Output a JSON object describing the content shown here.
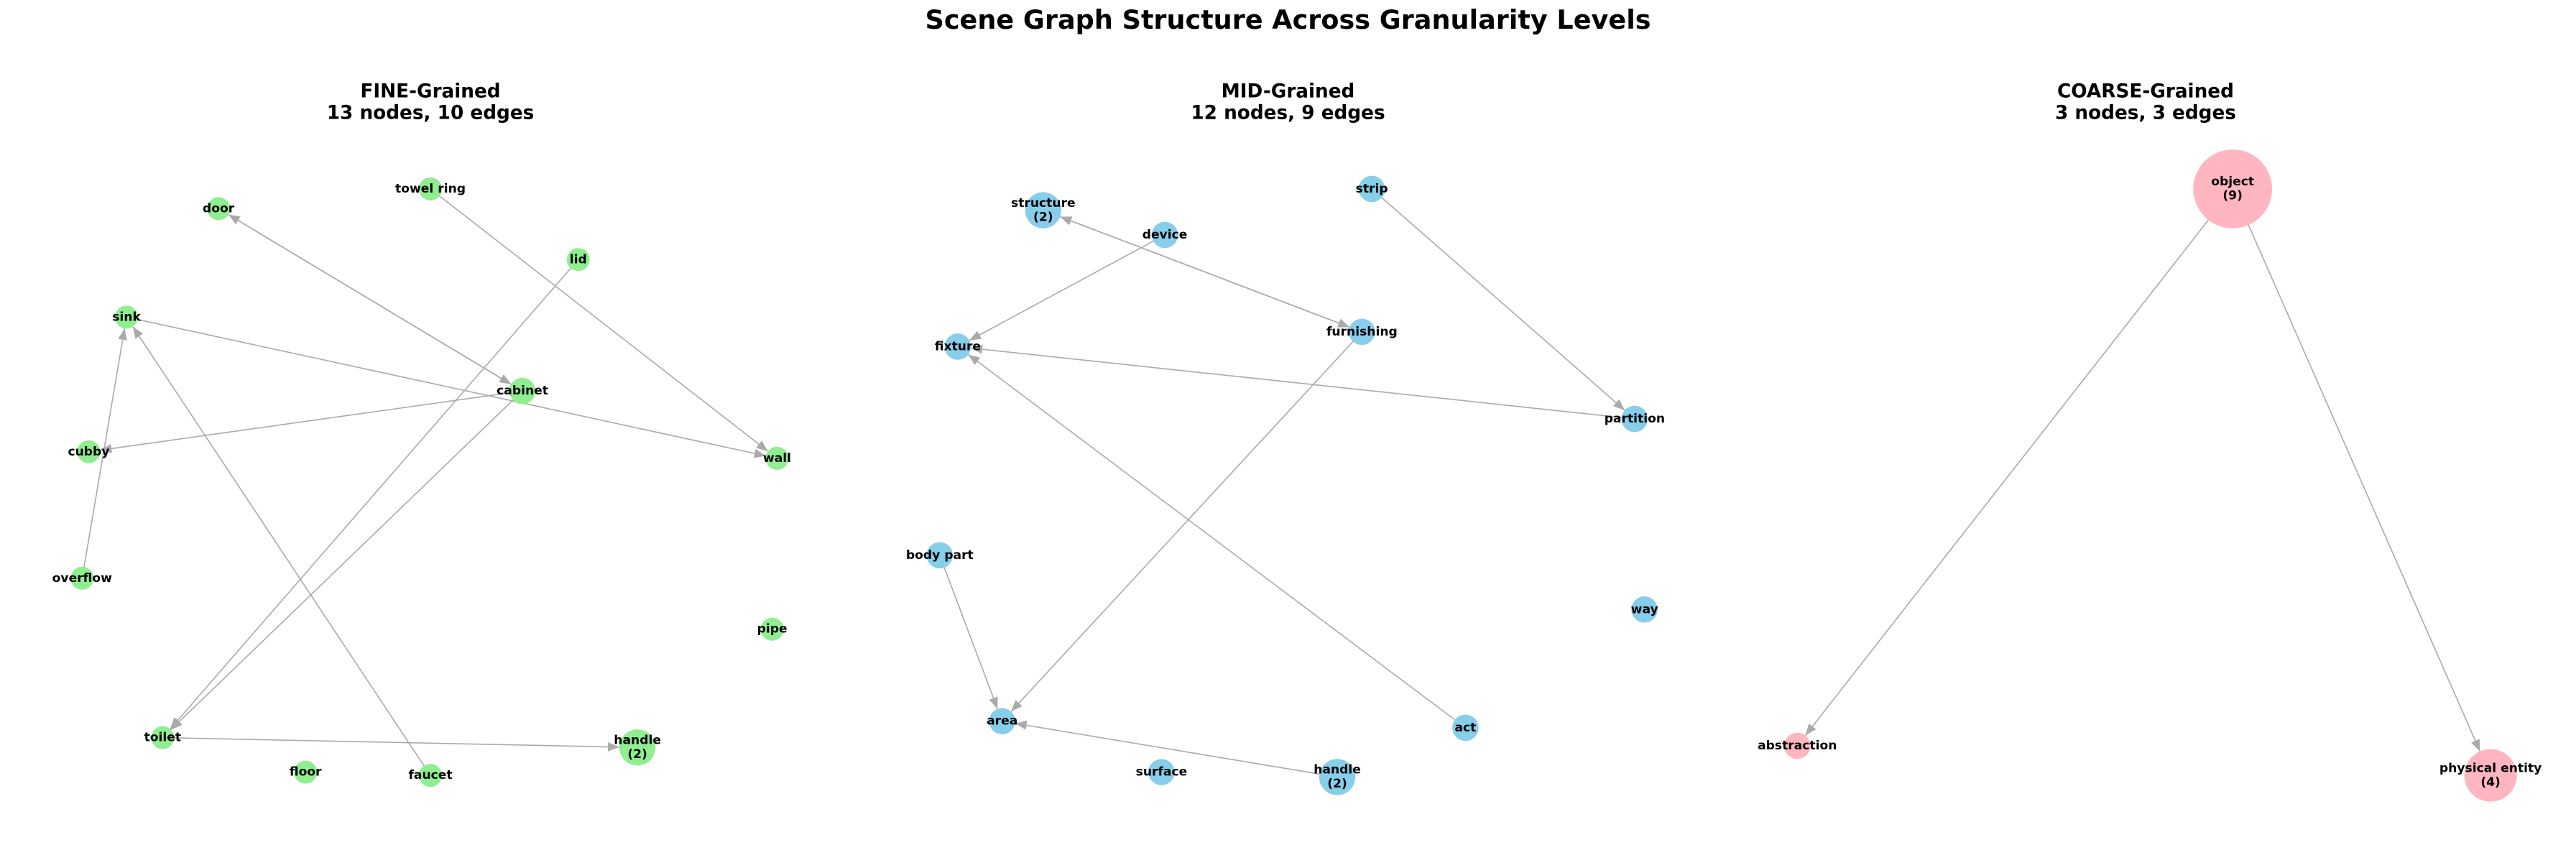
{
  "title": "Scene Graph Structure Across Granularity Levels",
  "panels": [
    {
      "title_lines": [
        "FINE-Grained",
        "13 nodes, 10 edges"
      ],
      "nodes": [
        {
          "label": [
            "door"
          ]
        },
        {
          "label": [
            "towel ring"
          ]
        },
        {
          "label": [
            "lid"
          ]
        },
        {
          "label": [
            "sink"
          ]
        },
        {
          "label": [
            "cabinet"
          ]
        },
        {
          "label": [
            "cubby"
          ]
        },
        {
          "label": [
            "wall"
          ]
        },
        {
          "label": [
            "overflow"
          ]
        },
        {
          "label": [
            "pipe"
          ]
        },
        {
          "label": [
            "toilet"
          ]
        },
        {
          "label": [
            "handle",
            "(2)"
          ]
        },
        {
          "label": [
            "floor"
          ]
        },
        {
          "label": [
            "faucet"
          ]
        }
      ]
    },
    {
      "title_lines": [
        "MID-Grained",
        "12 nodes, 9 edges"
      ],
      "nodes": [
        {
          "label": [
            "structure",
            "(2)"
          ]
        },
        {
          "label": [
            "strip"
          ]
        },
        {
          "label": [
            "device"
          ]
        },
        {
          "label": [
            "fixture"
          ]
        },
        {
          "label": [
            "furnishing"
          ]
        },
        {
          "label": [
            "partition"
          ]
        },
        {
          "label": [
            "body part"
          ]
        },
        {
          "label": [
            "way"
          ]
        },
        {
          "label": [
            "area"
          ]
        },
        {
          "label": [
            "act"
          ]
        },
        {
          "label": [
            "surface"
          ]
        },
        {
          "label": [
            "handle",
            "(2)"
          ]
        }
      ]
    },
    {
      "title_lines": [
        "COARSE-Grained",
        "3 nodes, 3 edges"
      ],
      "nodes": [
        {
          "label": [
            "object",
            "(9)"
          ]
        },
        {
          "label": [
            "abstraction"
          ]
        },
        {
          "label": [
            "physical entity",
            "(4)"
          ]
        }
      ]
    }
  ]
}
